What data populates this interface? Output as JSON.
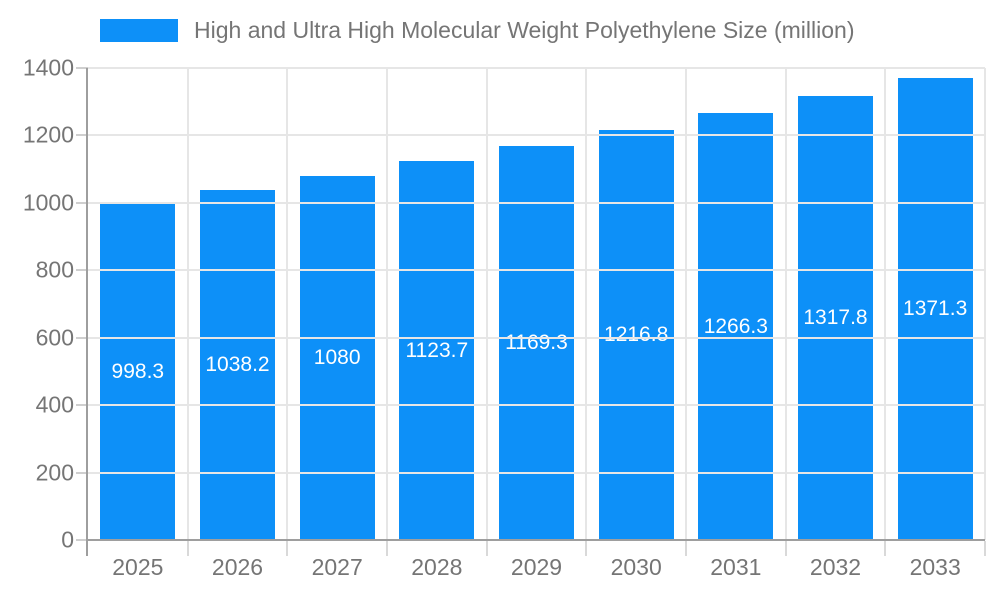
{
  "chart_data": {
    "type": "bar",
    "title": "High and Ultra High Molecular Weight Polyethylene Size (million)",
    "categories": [
      "2025",
      "2026",
      "2027",
      "2028",
      "2029",
      "2030",
      "2031",
      "2032",
      "2033"
    ],
    "values": [
      998.3,
      1038.2,
      1080,
      1123.7,
      1169.3,
      1216.8,
      1266.3,
      1317.8,
      1371.3
    ],
    "xlabel": "",
    "ylabel": "",
    "ylim": [
      0,
      1400
    ],
    "ytick_step": 200,
    "grid": true,
    "legend_position": "top",
    "bar_color": "#0d90f8",
    "bar_label_color": "#ffffff",
    "axis_text_color": "#757575",
    "grid_color": "#e6e6e6",
    "axis_line_color": "#9e9e9e"
  }
}
